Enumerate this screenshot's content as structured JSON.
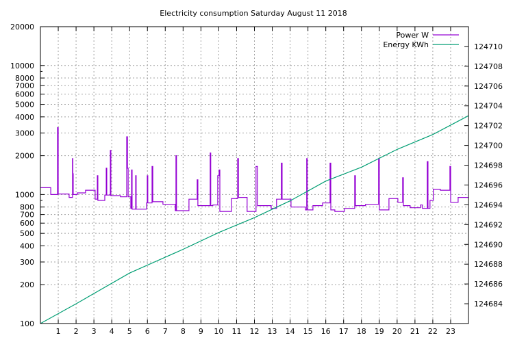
{
  "chart_data": {
    "type": "line",
    "title": "Electricity consumption Saturday August 11 2018",
    "xlabel": "",
    "ylabel": "",
    "xlim": [
      0,
      24
    ],
    "ylim": [
      100,
      20000
    ],
    "yscale": "log",
    "y2lim": [
      124682,
      124712
    ],
    "grid": true,
    "legend_position": "top-right",
    "x_ticks": [
      "1",
      "2",
      "3",
      "4",
      "5",
      "6",
      "7",
      "8",
      "9",
      "10",
      "11",
      "12",
      "13",
      "14",
      "15",
      "16",
      "17",
      "18",
      "19",
      "20",
      "21",
      "22",
      "23"
    ],
    "y_ticks": [
      100,
      200,
      300,
      400,
      500,
      600,
      700,
      800,
      1000,
      2000,
      3000,
      4000,
      5000,
      6000,
      7000,
      8000,
      10000,
      20000
    ],
    "y_tick_labels": [
      "100",
      "200",
      "300",
      "400",
      "500",
      "600",
      "700",
      "800",
      "1000",
      "2000",
      "3000",
      "4000",
      "5000",
      "6000",
      "7000",
      "8000",
      "10000",
      "20000"
    ],
    "y2_ticks": [
      124684,
      124686,
      124688,
      124690,
      124692,
      124694,
      124696,
      124698,
      124700,
      124702,
      124704,
      124706,
      124708,
      124710
    ],
    "y2_tick_labels": [
      "124684",
      "124686",
      "124688",
      "124690",
      "124692",
      "124694",
      "124696",
      "124698",
      "124700",
      "124702",
      "124704",
      "124706",
      "124708",
      "124710"
    ],
    "series": [
      {
        "name": "Power W",
        "axis": "y",
        "color": "#9400d3",
        "style": "steps",
        "points": [
          [
            0,
            1130
          ],
          [
            0.58,
            1000
          ],
          [
            0.96,
            3300
          ],
          [
            1.0,
            1010
          ],
          [
            1.61,
            950
          ],
          [
            1.8,
            1900
          ],
          [
            1.82,
            1450
          ],
          [
            1.84,
            1000
          ],
          [
            2.07,
            1030
          ],
          [
            2.53,
            1080
          ],
          [
            3.07,
            920
          ],
          [
            3.19,
            1400
          ],
          [
            3.22,
            900
          ],
          [
            3.61,
            990
          ],
          [
            3.69,
            1600
          ],
          [
            3.72,
            990
          ],
          [
            3.92,
            2200
          ],
          [
            3.95,
            980
          ],
          [
            4.49,
            960
          ],
          [
            4.84,
            2800
          ],
          [
            4.88,
            1600
          ],
          [
            4.92,
            960
          ],
          [
            5.07,
            780
          ],
          [
            5.11,
            1550
          ],
          [
            5.14,
            770
          ],
          [
            5.34,
            1400
          ],
          [
            5.37,
            770
          ],
          [
            5.95,
            860
          ],
          [
            5.99,
            1400
          ],
          [
            6.02,
            860
          ],
          [
            6.26,
            1650
          ],
          [
            6.3,
            880
          ],
          [
            6.87,
            840
          ],
          [
            7.56,
            750
          ],
          [
            7.6,
            2000
          ],
          [
            7.63,
            750
          ],
          [
            8.33,
            920
          ],
          [
            8.79,
            1300
          ],
          [
            8.83,
            820
          ],
          [
            9.52,
            2100
          ],
          [
            9.55,
            820
          ],
          [
            9.67,
            830
          ],
          [
            9.94,
            1400
          ],
          [
            10.02,
            1550
          ],
          [
            10.06,
            740
          ],
          [
            10.71,
            930
          ],
          [
            11.06,
            1900
          ],
          [
            11.1,
            950
          ],
          [
            11.59,
            740
          ],
          [
            12.09,
            1650
          ],
          [
            12.17,
            820
          ],
          [
            12.94,
            780
          ],
          [
            13.24,
            920
          ],
          [
            13.51,
            1750
          ],
          [
            13.55,
            920
          ],
          [
            14.05,
            800
          ],
          [
            14.86,
            760
          ],
          [
            14.93,
            1900
          ],
          [
            14.96,
            760
          ],
          [
            15.28,
            820
          ],
          [
            15.82,
            860
          ],
          [
            16.24,
            1750
          ],
          [
            16.28,
            760
          ],
          [
            16.51,
            740
          ],
          [
            17.04,
            780
          ],
          [
            17.62,
            1400
          ],
          [
            17.66,
            820
          ],
          [
            18.23,
            840
          ],
          [
            18.96,
            1900
          ],
          [
            19.0,
            760
          ],
          [
            19.54,
            930
          ],
          [
            20.04,
            870
          ],
          [
            20.31,
            1350
          ],
          [
            20.35,
            820
          ],
          [
            20.73,
            790
          ],
          [
            21.31,
            830
          ],
          [
            21.42,
            780
          ],
          [
            21.69,
            1800
          ],
          [
            21.73,
            780
          ],
          [
            21.84,
            900
          ],
          [
            22.03,
            1100
          ],
          [
            22.42,
            1080
          ],
          [
            22.96,
            1650
          ],
          [
            23.0,
            870
          ],
          [
            23.42,
            950
          ],
          [
            24,
            950
          ]
        ]
      },
      {
        "name": "Energy KWh",
        "axis": "y2",
        "color": "#009e73",
        "style": "line",
        "points": [
          [
            0,
            124682
          ],
          [
            2,
            124684
          ],
          [
            5,
            124687.1
          ],
          [
            8,
            124689.5
          ],
          [
            10,
            124691.2
          ],
          [
            12,
            124692.7
          ],
          [
            14,
            124694.4
          ],
          [
            16,
            124696.4
          ],
          [
            18,
            124697.8
          ],
          [
            20,
            124699.6
          ],
          [
            22,
            124701.1
          ],
          [
            24,
            124703
          ]
        ]
      }
    ]
  }
}
